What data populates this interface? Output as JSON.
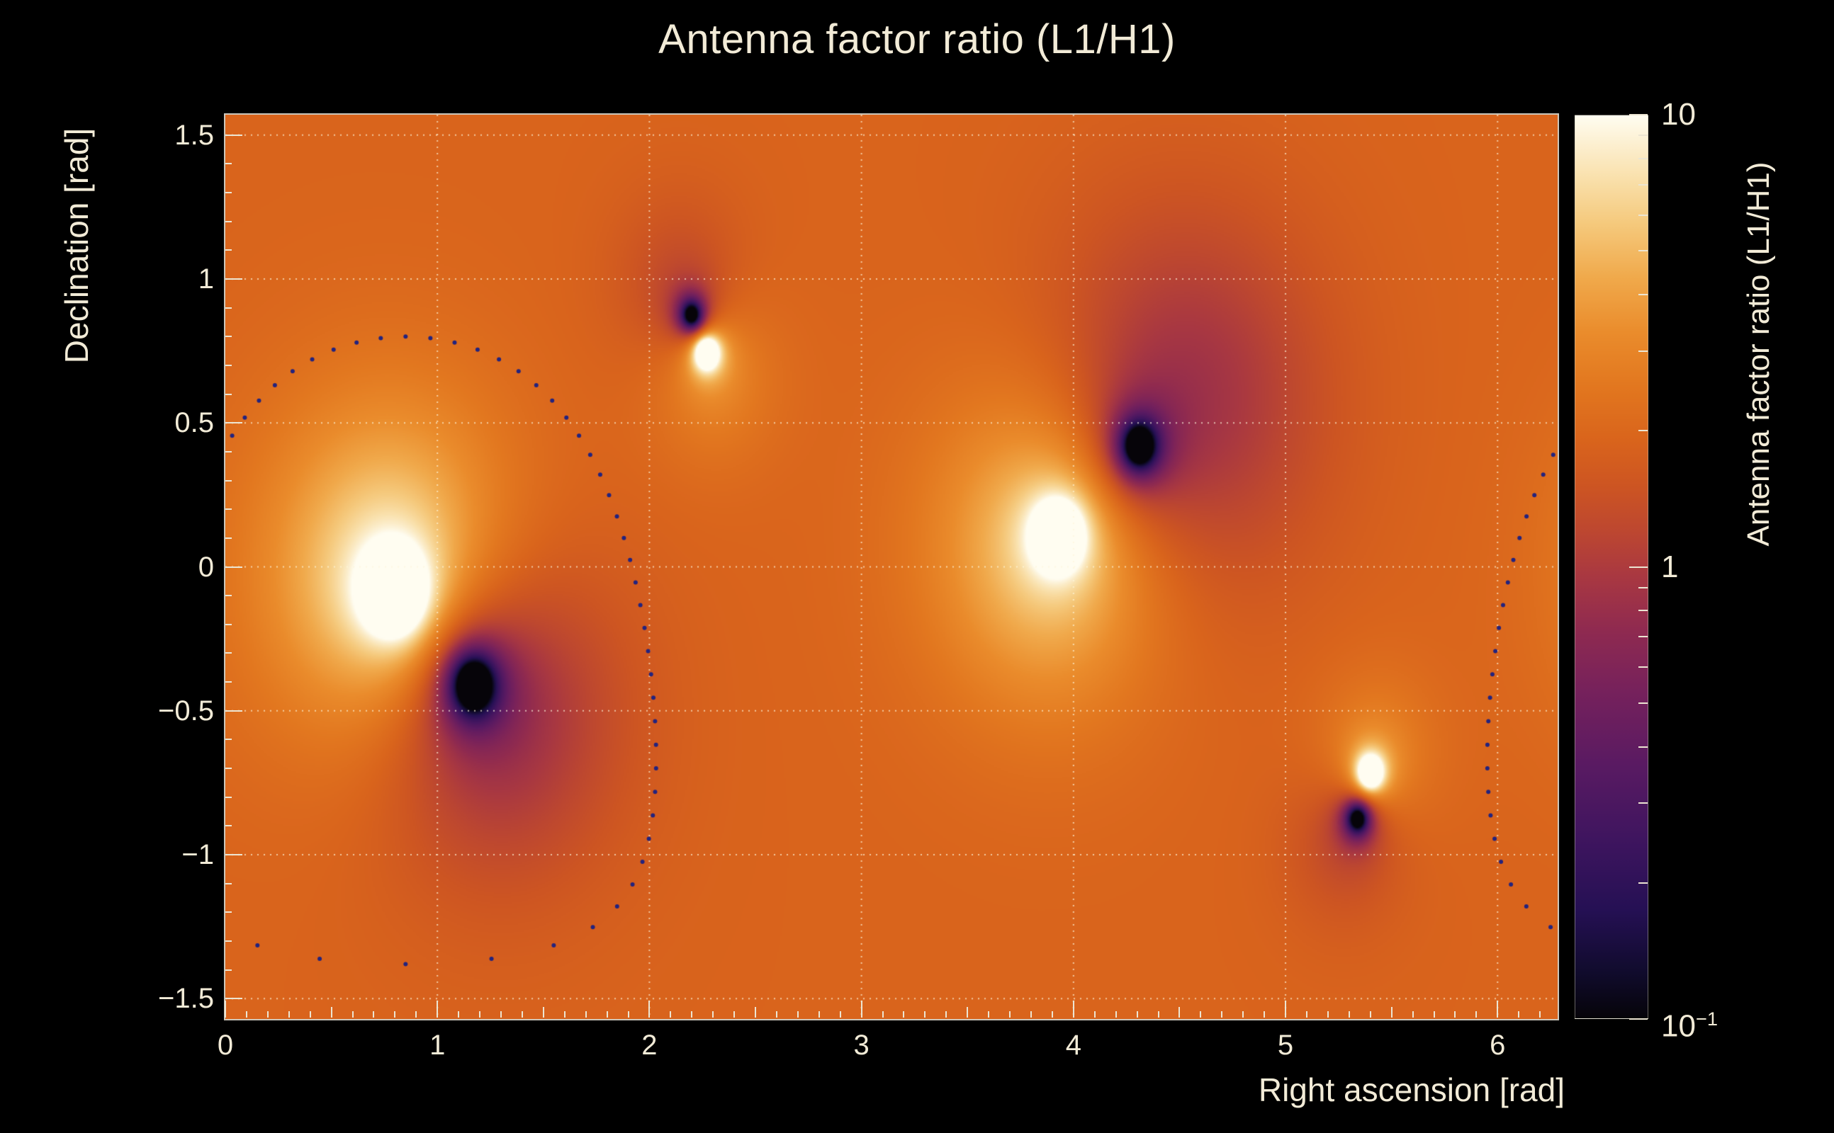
{
  "colors": {
    "background": "#000000",
    "text": "#f2ebd7",
    "tick": "#ece5d2",
    "grid": "#fdf6dc",
    "track_dots": "#23237e"
  },
  "chart_data": {
    "type": "heatmap",
    "title": "Antenna factor ratio (L1/H1)",
    "xlabel": "Right ascension [rad]",
    "ylabel": "Declination [rad]",
    "zlabel": "Antenna factor ratio (L1/H1)",
    "x_range": [
      0,
      6.2832
    ],
    "y_range": [
      -1.5708,
      1.5708
    ],
    "z_range": [
      0.1,
      10
    ],
    "z_scale": "log10",
    "grid": true,
    "x_ticks": {
      "values": [
        0,
        1,
        2,
        3,
        4,
        5,
        6
      ],
      "labels": [
        "0",
        "1",
        "2",
        "3",
        "4",
        "5",
        "6"
      ]
    },
    "y_ticks": {
      "values": [
        1.5,
        1.0,
        0.5,
        0.0,
        -0.5,
        -1.0,
        -1.5
      ],
      "labels": [
        "1.5",
        "1",
        "0.5",
        "0",
        "−0.5",
        "−1",
        "−1.5"
      ]
    },
    "colorbar_ticks": [
      {
        "value": 10,
        "base": "10",
        "sup": ""
      },
      {
        "value": 1,
        "base": "1",
        "sup": ""
      },
      {
        "value": 0.1,
        "base": "10",
        "sup": "−1"
      }
    ],
    "maxima_ra_dec": [
      [
        0.8,
        -0.09
      ],
      [
        2.27,
        0.75
      ],
      [
        3.93,
        0.11
      ],
      [
        5.4,
        -0.72
      ]
    ],
    "minima_ra_dec": [
      [
        1.17,
        -0.41
      ],
      [
        2.2,
        0.88
      ],
      [
        4.31,
        0.42
      ],
      [
        5.34,
        -0.88
      ]
    ],
    "field": {
      "base_log10": 0.28,
      "maxima": [
        {
          "ra": 0.8,
          "dec": -0.09,
          "amp": 2.4,
          "sigma": 0.085
        },
        {
          "ra": 2.27,
          "dec": 0.745,
          "amp": 1.8,
          "sigma": 0.05
        },
        {
          "ra": 3.93,
          "dec": 0.11,
          "amp": 2.2,
          "sigma": 0.07
        },
        {
          "ra": 5.4,
          "dec": -0.715,
          "amp": 1.8,
          "sigma": 0.05
        }
      ],
      "minima": [
        {
          "ra": 1.17,
          "dec": -0.41,
          "amp": -2.4,
          "sigma": 0.085
        },
        {
          "ra": 2.2,
          "dec": 0.875,
          "amp": -1.8,
          "sigma": 0.05
        },
        {
          "ra": 4.31,
          "dec": 0.42,
          "amp": -2.2,
          "sigma": 0.07
        },
        {
          "ra": 5.34,
          "dec": -0.875,
          "amp": -1.8,
          "sigma": 0.05
        }
      ],
      "broad_lobes": [
        {
          "ra": 0.78,
          "dec": -0.02,
          "amp": 0.5,
          "sigma": 0.42
        },
        {
          "ra": 3.9,
          "dec": 0.08,
          "amp": 0.45,
          "sigma": 0.4
        },
        {
          "ra": 2.3,
          "dec": 0.66,
          "amp": 0.16,
          "sigma": 0.22
        },
        {
          "ra": 5.43,
          "dec": -0.64,
          "amp": 0.14,
          "sigma": 0.2
        },
        {
          "ra": 1.28,
          "dec": -0.5,
          "amp": -0.34,
          "sigma": 0.4
        },
        {
          "ra": 4.52,
          "dec": 0.58,
          "amp": -0.34,
          "sigma": 0.46
        },
        {
          "ra": 2.14,
          "dec": 0.98,
          "amp": -0.14,
          "sigma": 0.22
        },
        {
          "ra": 5.27,
          "dec": -0.98,
          "amp": -0.12,
          "sigma": 0.2
        }
      ]
    },
    "track": {
      "pole_ra": 0.85,
      "pole_dec": -0.29,
      "radius": 1.09,
      "n_dots": 68,
      "color": "#23237e",
      "dot_radius": 3
    },
    "palette": [
      {
        "t": 0.0,
        "c": "#060409"
      },
      {
        "t": 0.05,
        "c": "#100b2c"
      },
      {
        "t": 0.12,
        "c": "#251054"
      },
      {
        "t": 0.2,
        "c": "#3f155f"
      },
      {
        "t": 0.28,
        "c": "#591a62"
      },
      {
        "t": 0.36,
        "c": "#75215c"
      },
      {
        "t": 0.43,
        "c": "#8f2a50"
      },
      {
        "t": 0.49,
        "c": "#a93841"
      },
      {
        "t": 0.54,
        "c": "#bd4730"
      },
      {
        "t": 0.59,
        "c": "#cd5522"
      },
      {
        "t": 0.64,
        "c": "#d9641c"
      },
      {
        "t": 0.7,
        "c": "#e2771f"
      },
      {
        "t": 0.76,
        "c": "#ea8c2c"
      },
      {
        "t": 0.82,
        "c": "#f0a94b"
      },
      {
        "t": 0.88,
        "c": "#f5c97c"
      },
      {
        "t": 0.93,
        "c": "#f9e0ab"
      },
      {
        "t": 0.97,
        "c": "#fcf0d2"
      },
      {
        "t": 1.0,
        "c": "#fffdf1"
      }
    ]
  }
}
